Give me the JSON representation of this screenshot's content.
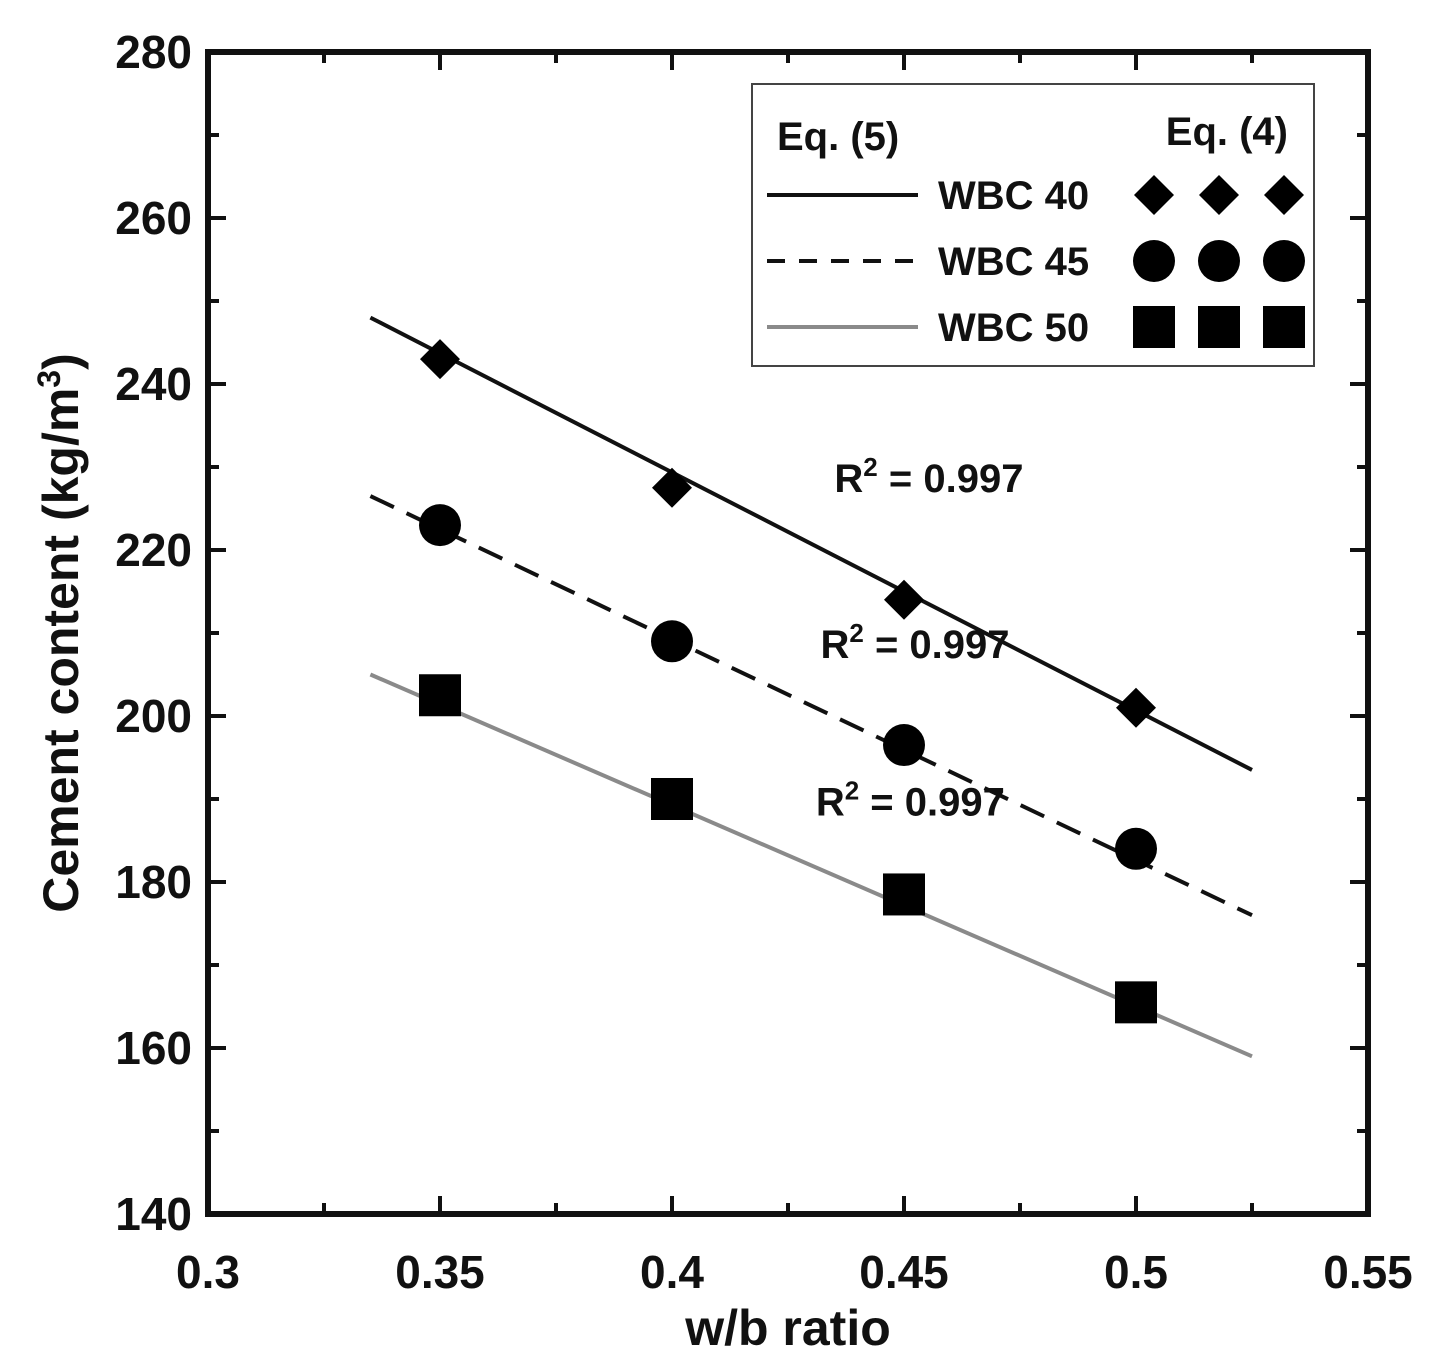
{
  "chart_data": {
    "type": "scatter",
    "xlabel": "w/b ratio",
    "ylabel": "Cement content (kg/m",
    "ylabel_sup": "3",
    "ylabel_suffix": ")",
    "xlim": [
      0.3,
      0.55
    ],
    "ylim": [
      140,
      280
    ],
    "x_ticks": [
      0.3,
      0.35,
      0.4,
      0.45,
      0.5,
      0.55
    ],
    "x_tick_labels": [
      "0.3",
      "0.35",
      "0.4",
      "0.45",
      "0.5",
      "0.55"
    ],
    "y_ticks": [
      140,
      160,
      180,
      200,
      220,
      240,
      260,
      280
    ],
    "y_tick_labels": [
      "140",
      "160",
      "180",
      "200",
      "220",
      "240",
      "260",
      "280"
    ],
    "grid": false,
    "legend": {
      "placement": "top-right",
      "header_left": "Eq. (5)",
      "header_right": "Eq. (4)"
    },
    "series": [
      {
        "name": "WBC 40",
        "marker": "diamond",
        "line_style": "solid",
        "line_color": "#111111",
        "x": [
          0.35,
          0.4,
          0.45,
          0.5
        ],
        "values": [
          243,
          227.5,
          214,
          201
        ],
        "fit_x": [
          0.335,
          0.525
        ],
        "fit_y": [
          248,
          193.5
        ],
        "r2_label": "R",
        "r2_sup": "2",
        "r2_value": " = 0.997",
        "r2_at": [
          0.435,
          227
        ]
      },
      {
        "name": "WBC 45",
        "marker": "circle",
        "line_style": "dashed",
        "line_color": "#111111",
        "x": [
          0.35,
          0.4,
          0.45,
          0.5
        ],
        "values": [
          223,
          209,
          196.5,
          184
        ],
        "fit_x": [
          0.335,
          0.525
        ],
        "fit_y": [
          226.5,
          176
        ],
        "r2_label": "R",
        "r2_sup": "2",
        "r2_value": " = 0.997",
        "r2_at": [
          0.432,
          207
        ]
      },
      {
        "name": "WBC 50",
        "marker": "square",
        "line_style": "solid",
        "line_color": "#8a8a8a",
        "x": [
          0.35,
          0.4,
          0.45,
          0.5
        ],
        "values": [
          202.5,
          190,
          178.5,
          165.5
        ],
        "fit_x": [
          0.335,
          0.525
        ],
        "fit_y": [
          205,
          159
        ],
        "r2_label": "R",
        "r2_sup": "2",
        "r2_value": " = 0.997",
        "r2_at": [
          0.431,
          188
        ]
      }
    ]
  }
}
